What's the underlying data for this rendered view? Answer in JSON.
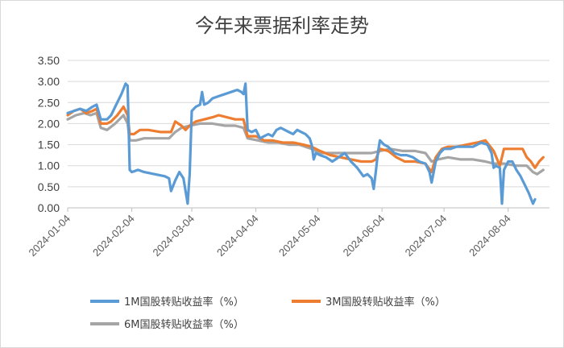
{
  "chart_data": {
    "type": "line",
    "title": "今年来票据利率走势",
    "xlabel": "",
    "ylabel": "",
    "ylim": [
      0,
      3.5
    ],
    "yticks": [
      "0.00",
      "0.50",
      "1.00",
      "1.50",
      "2.00",
      "2.50",
      "3.00",
      "3.50"
    ],
    "xticks": [
      "2024-01-04",
      "2024-02-04",
      "2024-03-04",
      "2024-04-04",
      "2024-05-04",
      "2024-06-04",
      "2024-07-04",
      "2024-08-04"
    ],
    "grid": true,
    "legend_position": "bottom",
    "series": [
      {
        "name": "1M国股转贴收益率（%）",
        "color": "#5b9bd5",
        "points": [
          [
            "2024-01-04",
            2.25
          ],
          [
            "2024-01-07",
            2.3
          ],
          [
            "2024-01-10",
            2.35
          ],
          [
            "2024-01-13",
            2.3
          ],
          [
            "2024-01-16",
            2.4
          ],
          [
            "2024-01-18",
            2.45
          ],
          [
            "2024-01-20",
            2.1
          ],
          [
            "2024-01-23",
            2.1
          ],
          [
            "2024-01-25",
            2.2
          ],
          [
            "2024-01-27",
            2.4
          ],
          [
            "2024-01-30",
            2.7
          ],
          [
            "2024-02-01",
            2.95
          ],
          [
            "2024-02-02",
            2.9
          ],
          [
            "2024-02-03",
            0.9
          ],
          [
            "2024-02-04",
            0.85
          ],
          [
            "2024-02-07",
            0.9
          ],
          [
            "2024-02-10",
            0.85
          ],
          [
            "2024-02-15",
            0.8
          ],
          [
            "2024-02-20",
            0.75
          ],
          [
            "2024-02-22",
            0.7
          ],
          [
            "2024-02-23",
            0.4
          ],
          [
            "2024-02-25",
            0.65
          ],
          [
            "2024-02-27",
            0.85
          ],
          [
            "2024-02-29",
            0.7
          ],
          [
            "2024-03-01",
            0.4
          ],
          [
            "2024-03-02",
            0.1
          ],
          [
            "2024-03-03",
            0.8
          ],
          [
            "2024-03-04",
            2.3
          ],
          [
            "2024-03-06",
            2.4
          ],
          [
            "2024-03-08",
            2.45
          ],
          [
            "2024-03-09",
            2.75
          ],
          [
            "2024-03-10",
            2.45
          ],
          [
            "2024-03-12",
            2.5
          ],
          [
            "2024-03-14",
            2.6
          ],
          [
            "2024-03-17",
            2.65
          ],
          [
            "2024-03-20",
            2.7
          ],
          [
            "2024-03-23",
            2.75
          ],
          [
            "2024-03-26",
            2.8
          ],
          [
            "2024-03-28",
            2.75
          ],
          [
            "2024-03-29",
            2.7
          ],
          [
            "2024-03-30",
            2.95
          ],
          [
            "2024-03-31",
            1.85
          ],
          [
            "2024-04-02",
            1.8
          ],
          [
            "2024-04-04",
            1.85
          ],
          [
            "2024-04-06",
            1.65
          ],
          [
            "2024-04-08",
            1.7
          ],
          [
            "2024-04-10",
            1.75
          ],
          [
            "2024-04-12",
            1.7
          ],
          [
            "2024-04-14",
            1.85
          ],
          [
            "2024-04-16",
            1.9
          ],
          [
            "2024-04-18",
            1.85
          ],
          [
            "2024-04-20",
            1.8
          ],
          [
            "2024-04-22",
            1.75
          ],
          [
            "2024-04-24",
            1.85
          ],
          [
            "2024-04-26",
            1.8
          ],
          [
            "2024-04-28",
            1.75
          ],
          [
            "2024-04-30",
            1.65
          ],
          [
            "2024-05-01",
            1.5
          ],
          [
            "2024-05-02",
            1.15
          ],
          [
            "2024-05-03",
            1.3
          ],
          [
            "2024-05-05",
            1.25
          ],
          [
            "2024-05-08",
            1.2
          ],
          [
            "2024-05-11",
            1.1
          ],
          [
            "2024-05-14",
            1.2
          ],
          [
            "2024-05-17",
            1.3
          ],
          [
            "2024-05-20",
            1.1
          ],
          [
            "2024-05-23",
            0.95
          ],
          [
            "2024-05-26",
            0.75
          ],
          [
            "2024-05-28",
            0.8
          ],
          [
            "2024-05-30",
            0.7
          ],
          [
            "2024-05-31",
            0.45
          ],
          [
            "2024-06-01",
            0.85
          ],
          [
            "2024-06-02",
            1.3
          ],
          [
            "2024-06-03",
            1.6
          ],
          [
            "2024-06-05",
            1.5
          ],
          [
            "2024-06-07",
            1.45
          ],
          [
            "2024-06-10",
            1.3
          ],
          [
            "2024-06-13",
            1.25
          ],
          [
            "2024-06-16",
            1.25
          ],
          [
            "2024-06-19",
            1.2
          ],
          [
            "2024-06-22",
            1.1
          ],
          [
            "2024-06-25",
            1.05
          ],
          [
            "2024-06-27",
            0.85
          ],
          [
            "2024-06-28",
            0.6
          ],
          [
            "2024-06-29",
            0.85
          ],
          [
            "2024-06-30",
            1.1
          ],
          [
            "2024-07-02",
            1.3
          ],
          [
            "2024-07-04",
            1.4
          ],
          [
            "2024-07-07",
            1.4
          ],
          [
            "2024-07-10",
            1.45
          ],
          [
            "2024-07-14",
            1.45
          ],
          [
            "2024-07-18",
            1.45
          ],
          [
            "2024-07-20",
            1.5
          ],
          [
            "2024-07-22",
            1.55
          ],
          [
            "2024-07-25",
            1.5
          ],
          [
            "2024-07-27",
            1.3
          ],
          [
            "2024-07-28",
            0.95
          ],
          [
            "2024-07-29",
            1.0
          ],
          [
            "2024-07-31",
            0.95
          ],
          [
            "2024-08-01",
            0.1
          ],
          [
            "2024-08-02",
            0.9
          ],
          [
            "2024-08-04",
            1.1
          ],
          [
            "2024-08-06",
            1.1
          ],
          [
            "2024-08-08",
            0.9
          ],
          [
            "2024-08-10",
            0.75
          ],
          [
            "2024-08-12",
            0.55
          ],
          [
            "2024-08-14",
            0.35
          ],
          [
            "2024-08-16",
            0.1
          ],
          [
            "2024-08-17",
            0.2
          ]
        ]
      },
      {
        "name": "3M国股转贴收益率（%）",
        "color": "#ed7d31",
        "points": [
          [
            "2024-01-04",
            2.2
          ],
          [
            "2024-01-07",
            2.3
          ],
          [
            "2024-01-10",
            2.35
          ],
          [
            "2024-01-13",
            2.25
          ],
          [
            "2024-01-16",
            2.3
          ],
          [
            "2024-01-18",
            2.35
          ],
          [
            "2024-01-20",
            2.0
          ],
          [
            "2024-01-23",
            2.0
          ],
          [
            "2024-01-25",
            2.05
          ],
          [
            "2024-01-28",
            2.2
          ],
          [
            "2024-01-31",
            2.4
          ],
          [
            "2024-02-02",
            2.2
          ],
          [
            "2024-02-03",
            1.75
          ],
          [
            "2024-02-05",
            1.75
          ],
          [
            "2024-02-08",
            1.85
          ],
          [
            "2024-02-12",
            1.85
          ],
          [
            "2024-02-18",
            1.8
          ],
          [
            "2024-02-23",
            1.8
          ],
          [
            "2024-02-25",
            2.05
          ],
          [
            "2024-02-28",
            1.95
          ],
          [
            "2024-03-01",
            1.85
          ],
          [
            "2024-03-03",
            1.95
          ],
          [
            "2024-03-06",
            2.05
          ],
          [
            "2024-03-10",
            2.1
          ],
          [
            "2024-03-14",
            2.15
          ],
          [
            "2024-03-17",
            2.2
          ],
          [
            "2024-03-21",
            2.15
          ],
          [
            "2024-03-25",
            2.1
          ],
          [
            "2024-03-29",
            2.1
          ],
          [
            "2024-03-31",
            1.7
          ],
          [
            "2024-04-04",
            1.7
          ],
          [
            "2024-04-08",
            1.6
          ],
          [
            "2024-04-12",
            1.6
          ],
          [
            "2024-04-17",
            1.55
          ],
          [
            "2024-04-22",
            1.55
          ],
          [
            "2024-04-27",
            1.5
          ],
          [
            "2024-05-01",
            1.45
          ],
          [
            "2024-05-05",
            1.35
          ],
          [
            "2024-05-10",
            1.25
          ],
          [
            "2024-05-15",
            1.2
          ],
          [
            "2024-05-20",
            1.15
          ],
          [
            "2024-05-25",
            1.1
          ],
          [
            "2024-05-30",
            1.1
          ],
          [
            "2024-06-01",
            1.15
          ],
          [
            "2024-06-03",
            1.4
          ],
          [
            "2024-06-07",
            1.35
          ],
          [
            "2024-06-11",
            1.2
          ],
          [
            "2024-06-15",
            1.1
          ],
          [
            "2024-06-20",
            1.1
          ],
          [
            "2024-06-25",
            1.05
          ],
          [
            "2024-06-28",
            0.85
          ],
          [
            "2024-06-30",
            1.2
          ],
          [
            "2024-07-03",
            1.4
          ],
          [
            "2024-07-06",
            1.45
          ],
          [
            "2024-07-10",
            1.45
          ],
          [
            "2024-07-15",
            1.5
          ],
          [
            "2024-07-20",
            1.55
          ],
          [
            "2024-07-24",
            1.6
          ],
          [
            "2024-07-28",
            1.35
          ],
          [
            "2024-07-31",
            1.0
          ],
          [
            "2024-08-02",
            1.4
          ],
          [
            "2024-08-05",
            1.4
          ],
          [
            "2024-08-08",
            1.4
          ],
          [
            "2024-08-11",
            1.4
          ],
          [
            "2024-08-13",
            1.2
          ],
          [
            "2024-08-15",
            1.1
          ],
          [
            "2024-08-17",
            0.95
          ],
          [
            "2024-08-19",
            1.1
          ],
          [
            "2024-08-21",
            1.2
          ]
        ]
      },
      {
        "name": "6M国股转贴收益率（%）",
        "color": "#a5a5a5",
        "points": [
          [
            "2024-01-04",
            2.1
          ],
          [
            "2024-01-08",
            2.2
          ],
          [
            "2024-01-12",
            2.25
          ],
          [
            "2024-01-15",
            2.2
          ],
          [
            "2024-01-18",
            2.25
          ],
          [
            "2024-01-20",
            1.9
          ],
          [
            "2024-01-23",
            1.85
          ],
          [
            "2024-01-27",
            2.0
          ],
          [
            "2024-01-31",
            2.2
          ],
          [
            "2024-02-02",
            2.0
          ],
          [
            "2024-02-03",
            1.6
          ],
          [
            "2024-02-06",
            1.6
          ],
          [
            "2024-02-10",
            1.65
          ],
          [
            "2024-02-16",
            1.65
          ],
          [
            "2024-02-22",
            1.65
          ],
          [
            "2024-02-25",
            1.8
          ],
          [
            "2024-02-28",
            1.9
          ],
          [
            "2024-03-03",
            1.95
          ],
          [
            "2024-03-08",
            2.0
          ],
          [
            "2024-03-14",
            2.0
          ],
          [
            "2024-03-20",
            1.95
          ],
          [
            "2024-03-25",
            1.95
          ],
          [
            "2024-03-29",
            1.9
          ],
          [
            "2024-03-31",
            1.65
          ],
          [
            "2024-04-05",
            1.6
          ],
          [
            "2024-04-10",
            1.55
          ],
          [
            "2024-04-15",
            1.55
          ],
          [
            "2024-04-20",
            1.5
          ],
          [
            "2024-04-25",
            1.5
          ],
          [
            "2024-05-01",
            1.4
          ],
          [
            "2024-05-05",
            1.3
          ],
          [
            "2024-05-10",
            1.3
          ],
          [
            "2024-05-15",
            1.3
          ],
          [
            "2024-05-20",
            1.3
          ],
          [
            "2024-05-25",
            1.3
          ],
          [
            "2024-05-30",
            1.3
          ],
          [
            "2024-06-03",
            1.35
          ],
          [
            "2024-06-08",
            1.4
          ],
          [
            "2024-06-14",
            1.35
          ],
          [
            "2024-06-20",
            1.35
          ],
          [
            "2024-06-25",
            1.3
          ],
          [
            "2024-06-28",
            1.1
          ],
          [
            "2024-07-01",
            1.15
          ],
          [
            "2024-07-06",
            1.2
          ],
          [
            "2024-07-12",
            1.15
          ],
          [
            "2024-07-18",
            1.15
          ],
          [
            "2024-07-24",
            1.1
          ],
          [
            "2024-07-28",
            1.05
          ],
          [
            "2024-08-02",
            1.05
          ],
          [
            "2024-08-08",
            1.0
          ],
          [
            "2024-08-13",
            1.0
          ],
          [
            "2024-08-16",
            0.85
          ],
          [
            "2024-08-18",
            0.8
          ],
          [
            "2024-08-21",
            0.9
          ]
        ]
      }
    ]
  }
}
